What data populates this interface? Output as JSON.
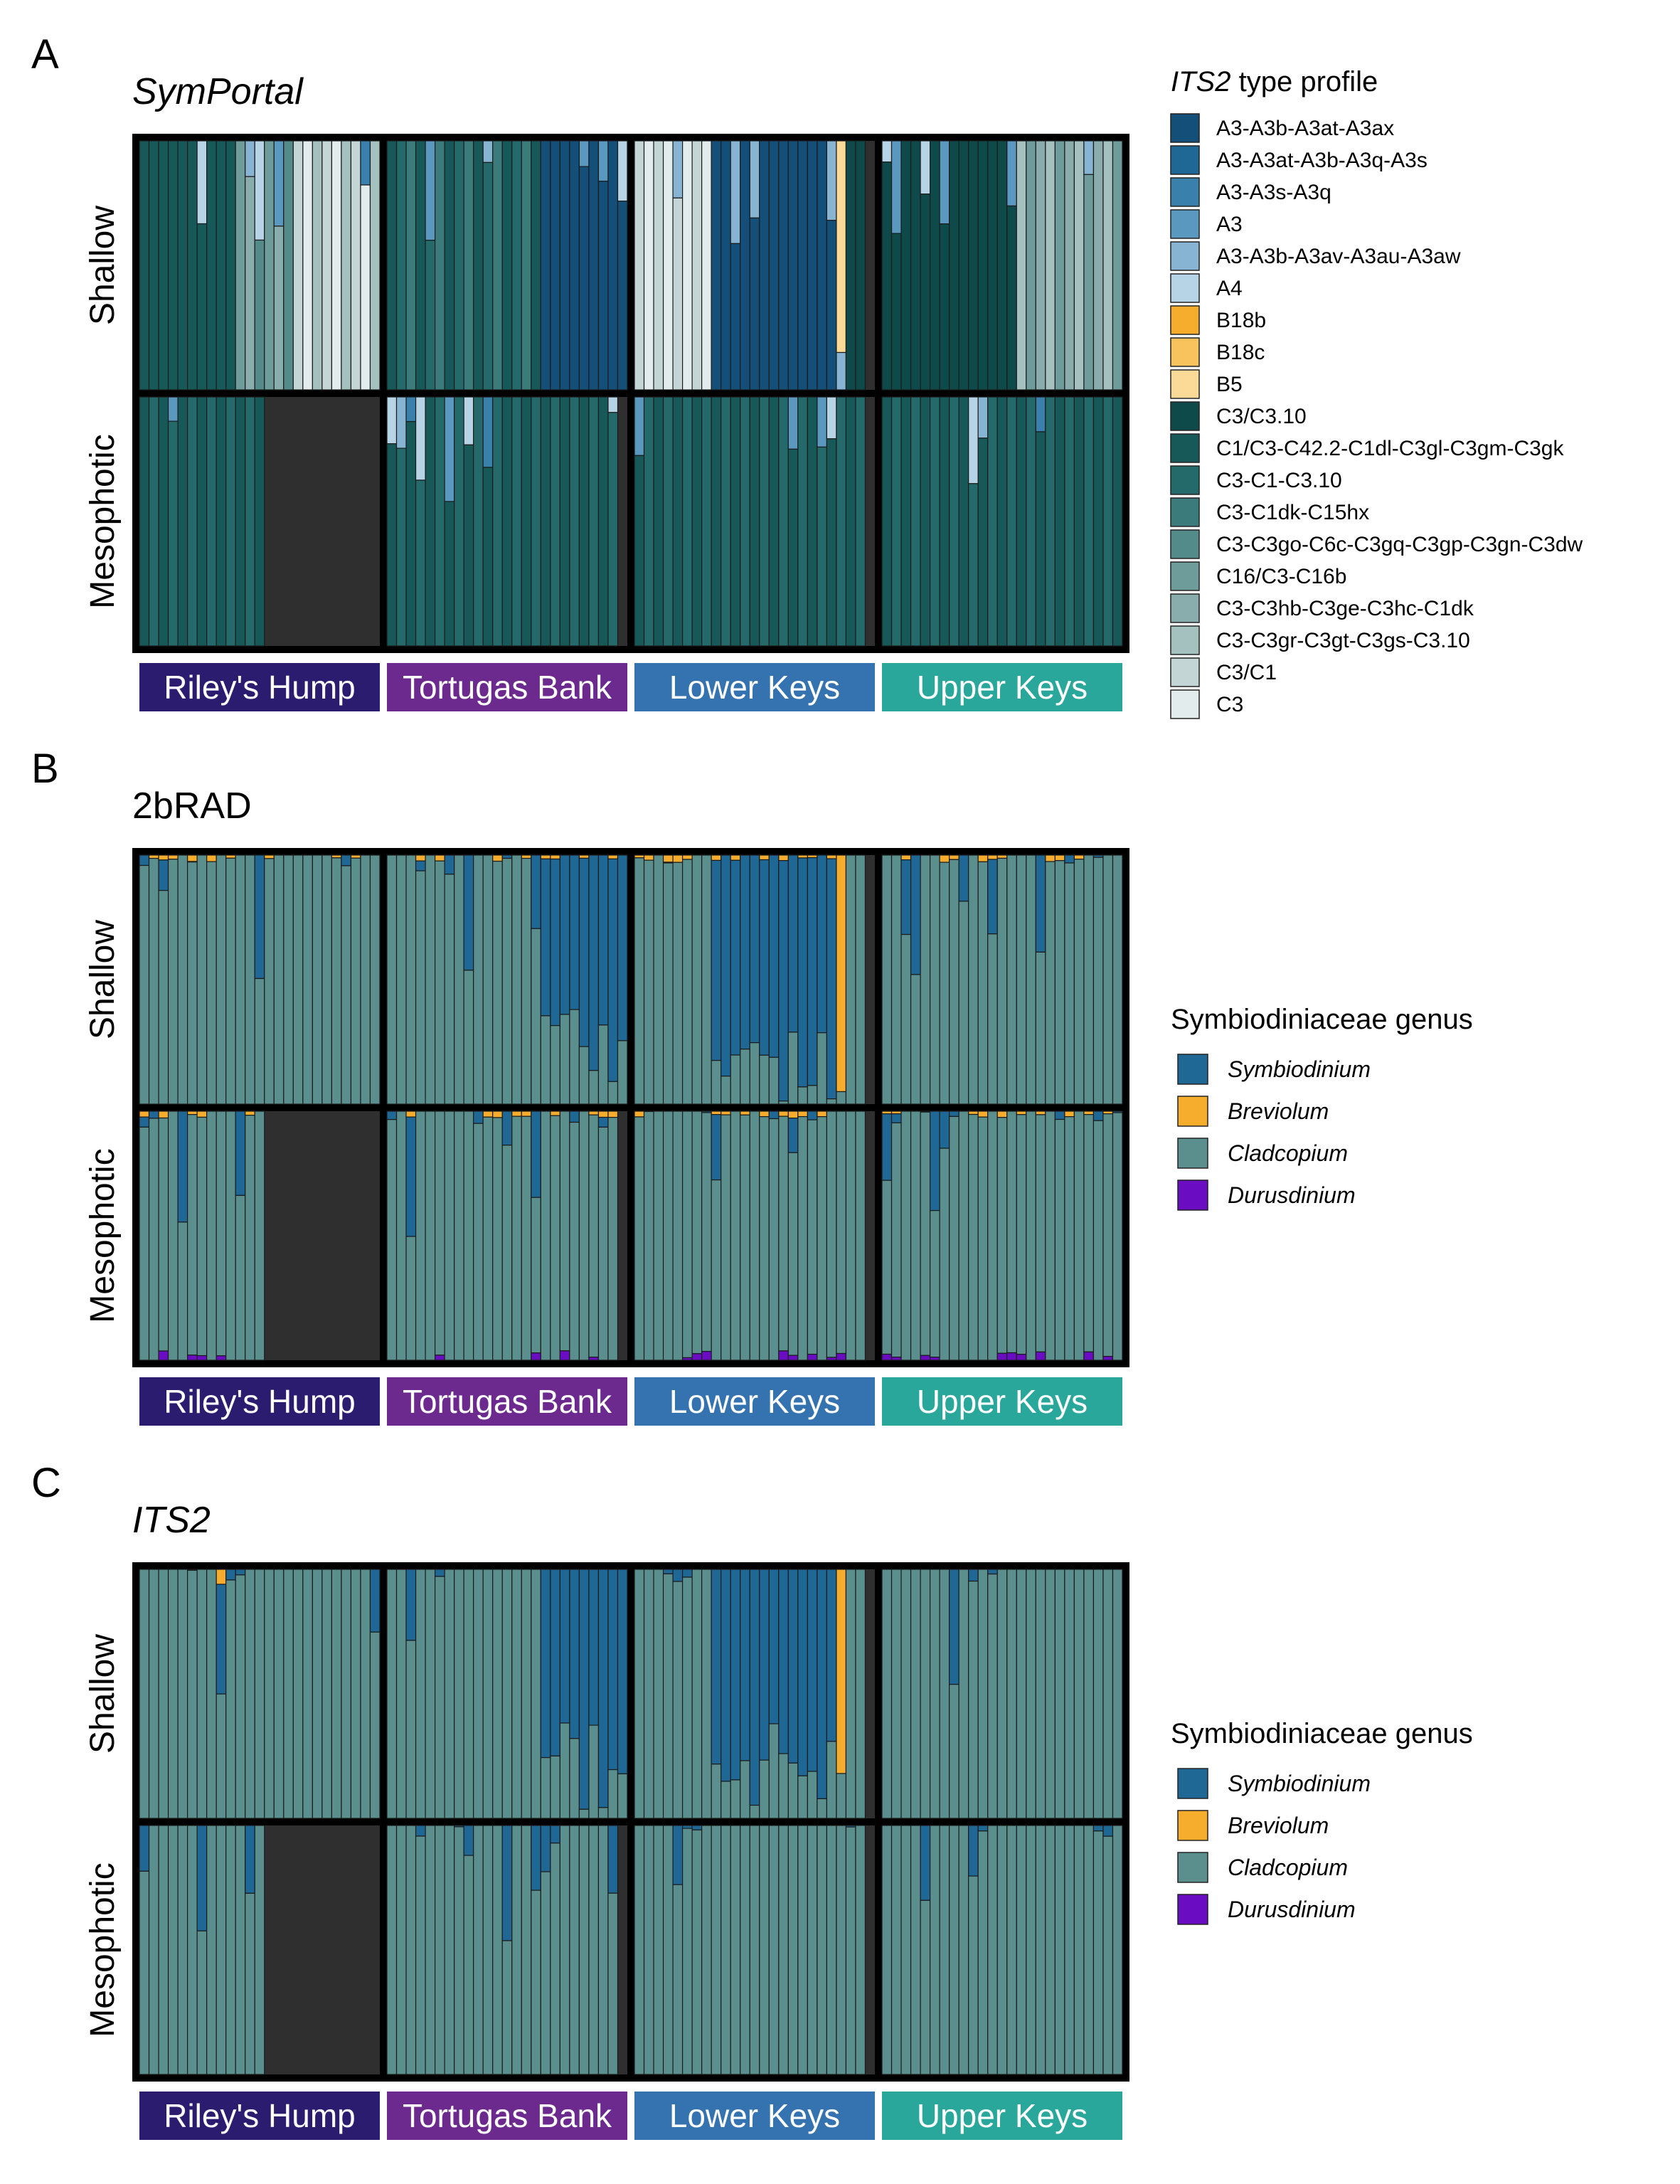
{
  "chart_data": [
    {
      "type": "stacked-bar-facets",
      "panel": "A",
      "title": "SymPortal",
      "rows": [
        "Shallow",
        "Mesophotic"
      ],
      "sites": [
        "Riley's Hump",
        "Tortugas Bank",
        "Lower Keys",
        "Upper Keys"
      ],
      "legend_title_italic": "ITS2",
      "legend_title_rest": " type profile",
      "legend_items": [
        {
          "label": "A3-A3b-A3at-A3ax",
          "color": "#134f78"
        },
        {
          "label": "A3-A3at-A3b-A3q-A3s",
          "color": "#1f6896"
        },
        {
          "label": "A3-A3s-A3q",
          "color": "#3a80ad"
        },
        {
          "label": "A3",
          "color": "#5b98c0"
        },
        {
          "label": "A3-A3b-A3av-A3au-A3aw",
          "color": "#86b4d2"
        },
        {
          "label": "A4",
          "color": "#b7d3e6"
        },
        {
          "label": "B18b",
          "color": "#f6ad2e"
        },
        {
          "label": "B18c",
          "color": "#f8c35c"
        },
        {
          "label": "B5",
          "color": "#fbda97"
        },
        {
          "label": "C3/C3.10",
          "color": "#0f4a4a"
        },
        {
          "label": "C1/C3-C42.2-C1dl-C3gl-C3gm-C3gk",
          "color": "#175858"
        },
        {
          "label": "C3-C1-C3.10",
          "color": "#256a6a"
        },
        {
          "label": "C3-C1dk-C15hx",
          "color": "#3b7b7b"
        },
        {
          "label": "C3-C3go-C6c-C3gq-C3gp-C3gn-C3dw",
          "color": "#538b8b"
        },
        {
          "label": "C16/C3-C16b",
          "color": "#6d9c9b"
        },
        {
          "label": "C3-C3hb-C3ge-C3hc-C1dk",
          "color": "#88adac"
        },
        {
          "label": "C3-C3gr-C3gt-C3gs-C3.10",
          "color": "#a4c1c0"
        },
        {
          "label": "C3/C1",
          "color": "#c3d6d5"
        },
        {
          "label": "C3",
          "color": "#e3ecec"
        }
      ]
    },
    {
      "type": "stacked-bar-facets",
      "panel": "B",
      "title": "2bRAD",
      "rows": [
        "Shallow",
        "Mesophotic"
      ],
      "sites": [
        "Riley's Hump",
        "Tortugas Bank",
        "Lower Keys",
        "Upper Keys"
      ],
      "legend_title": "Symbiodiniaceae genus",
      "legend_items": [
        {
          "label": "Symbiodinium",
          "color": "#1f6896"
        },
        {
          "label": "Breviolum",
          "color": "#f6ad2e"
        },
        {
          "label": "Cladcopium",
          "color": "#5a8f8e"
        },
        {
          "label": "Durusdinium",
          "color": "#6a0dc2"
        }
      ]
    },
    {
      "type": "stacked-bar-facets",
      "panel": "C",
      "title": "ITS2",
      "rows": [
        "Shallow",
        "Mesophotic"
      ],
      "sites": [
        "Riley's Hump",
        "Tortugas Bank",
        "Lower Keys",
        "Upper Keys"
      ],
      "legend_title": "Symbiodiniaceae genus",
      "legend_items": [
        {
          "label": "Symbiodinium",
          "color": "#1f6896"
        },
        {
          "label": "Breviolum",
          "color": "#f6ad2e"
        },
        {
          "label": "Cladcopium",
          "color": "#5a8f8e"
        },
        {
          "label": "Durusdinium",
          "color": "#6a0dc2"
        }
      ]
    }
  ],
  "site_colors": [
    "#2b1c70",
    "#6c2a8f",
    "#3572b0",
    "#2aa79b"
  ],
  "empty_cell_color": "#2f2f2f",
  "bars_per_cell": [
    [
      25,
      25,
      24,
      25
    ],
    [
      13,
      24,
      24,
      25
    ]
  ]
}
